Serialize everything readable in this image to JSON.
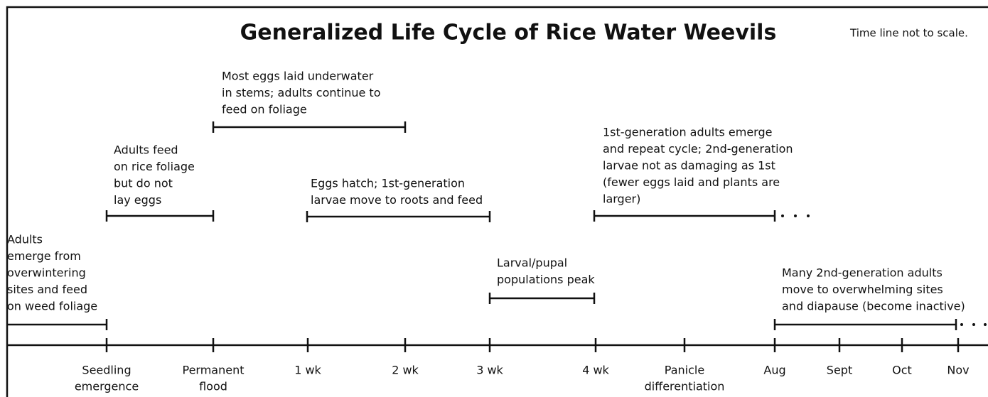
{
  "header": {
    "title": "Generalized Life Cycle of Rice Water Weevils",
    "note": "Time line not to scale."
  },
  "events": [
    {
      "lines": [
        "Adults",
        "emerge from",
        "overwintering",
        "sites and feed",
        "on weed foliage"
      ]
    },
    {
      "lines": [
        "Adults feed",
        "on rice foliage",
        "but do not",
        "lay eggs"
      ]
    },
    {
      "lines": [
        "Most eggs laid underwater",
        "in stems; adults continue to",
        "feed on foliage"
      ]
    },
    {
      "lines": [
        "Eggs hatch; 1st-generation",
        "larvae move to roots and feed"
      ]
    },
    {
      "lines": [
        "1st-generation adults emerge",
        "and repeat cycle; 2nd-generation",
        "larvae not as damaging as 1st",
        "(fewer eggs laid and plants are",
        "larger)"
      ]
    },
    {
      "lines": [
        "Larval/pupal",
        "populations peak"
      ]
    },
    {
      "lines": [
        "Many 2nd-generation adults",
        "move to overwhelming sites",
        "and diapause (become inactive)"
      ]
    }
  ],
  "timeline": [
    {
      "lines": [
        "Seedling",
        "emergence"
      ]
    },
    {
      "lines": [
        "Permanent",
        "flood"
      ]
    },
    {
      "lines": [
        "1 wk"
      ]
    },
    {
      "lines": [
        "2 wk"
      ]
    },
    {
      "lines": [
        "3 wk"
      ]
    },
    {
      "lines": [
        "4 wk"
      ]
    },
    {
      "lines": [
        "Panicle",
        "differentiation"
      ]
    },
    {
      "lines": [
        "Aug"
      ]
    },
    {
      "lines": [
        "Sept"
      ]
    },
    {
      "lines": [
        "Oct"
      ]
    },
    {
      "lines": [
        "Nov"
      ]
    }
  ]
}
